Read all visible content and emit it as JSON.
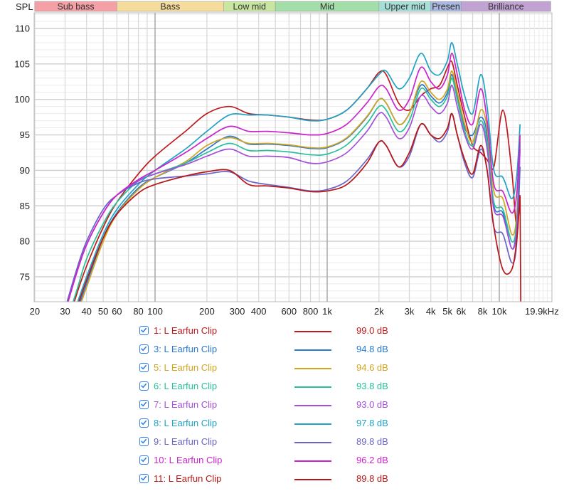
{
  "chart_data": {
    "type": "line",
    "title": "",
    "ylabel": "SPL",
    "xlabel": "",
    "x_scale": "log",
    "xlim": [
      20,
      19900
    ],
    "ylim": [
      71.2,
      112
    ],
    "grid": true,
    "y_ticks": [
      110,
      105,
      100,
      95,
      90,
      85,
      80,
      75
    ],
    "x_ticks": [
      {
        "f": 20,
        "label": "20"
      },
      {
        "f": 30,
        "label": "30"
      },
      {
        "f": 40,
        "label": "40"
      },
      {
        "f": 50,
        "label": "50"
      },
      {
        "f": 60,
        "label": "60"
      },
      {
        "f": 80,
        "label": "80"
      },
      {
        "f": 100,
        "label": "100"
      },
      {
        "f": 200,
        "label": "200"
      },
      {
        "f": 300,
        "label": "300"
      },
      {
        "f": 400,
        "label": "400"
      },
      {
        "f": 600,
        "label": "600"
      },
      {
        "f": 800,
        "label": "800"
      },
      {
        "f": 1000,
        "label": "1k"
      },
      {
        "f": 2000,
        "label": "2k"
      },
      {
        "f": 3000,
        "label": "3k"
      },
      {
        "f": 4000,
        "label": "4k"
      },
      {
        "f": 5000,
        "label": "5k"
      },
      {
        "f": 6000,
        "label": "6k"
      },
      {
        "f": 8000,
        "label": "8k"
      },
      {
        "f": 10000,
        "label": "10k"
      },
      {
        "f": 19900,
        "label": "19.9kHz"
      }
    ],
    "bands": [
      {
        "label": "Sub bass",
        "from": 20,
        "to": 60,
        "color": "#f4a0a6"
      },
      {
        "label": "Bass",
        "from": 60,
        "to": 250,
        "color": "#f6dc9c"
      },
      {
        "label": "Low mid",
        "from": 250,
        "to": 500,
        "color": "#c9e6a1"
      },
      {
        "label": "Mid",
        "from": 500,
        "to": 2000,
        "color": "#a3dea8"
      },
      {
        "label": "Upper mid",
        "from": 2000,
        "to": 4000,
        "color": "#a6dfd8"
      },
      {
        "label": "Presen",
        "from": 4000,
        "to": 6000,
        "color": "#a9b8e0"
      },
      {
        "label": "Brilliance",
        "from": 6000,
        "to": 19900,
        "color": "#c1a3d3"
      }
    ],
    "x": [
      30,
      35,
      40,
      50,
      60,
      80,
      100,
      150,
      200,
      270,
      350,
      450,
      600,
      800,
      1000,
      1300,
      1700,
      2000,
      2200,
      2600,
      3000,
      3500,
      4000,
      4500,
      5000,
      5300,
      5700,
      6300,
      7000,
      7800,
      8500,
      9300,
      10500,
      11800,
      12600,
      13200
    ],
    "series": [
      {
        "name": "1: L Earfun Clip",
        "color": "#c0191c",
        "level": "99.0 dB",
        "values": [
          67,
          72.5,
          76.5,
          82,
          85.5,
          89.5,
          92,
          95.5,
          98,
          99,
          98,
          97.8,
          97.5,
          97.1,
          97.2,
          98.5,
          101.5,
          103.8,
          103.5,
          99.5,
          98.5,
          100.5,
          101.5,
          102,
          104.5,
          105.3,
          102,
          97.5,
          93.5,
          92.5,
          91.5,
          90.5,
          98.5,
          90,
          82,
          86.5
        ]
      },
      {
        "name": "3: L Earfun Clip",
        "color": "#2878d0",
        "level": "94.8 dB",
        "values": [
          65,
          70,
          74,
          80.5,
          84,
          87.5,
          89,
          91,
          93,
          94.8,
          93.7,
          93.7,
          93.5,
          93.1,
          93.2,
          94.5,
          97.5,
          100,
          99.5,
          96.5,
          98,
          102,
          100.5,
          99.5,
          101,
          103.5,
          100.5,
          96,
          95,
          97.5,
          95,
          85,
          84,
          79,
          82,
          93.5
        ]
      },
      {
        "name": "5: L Earfun Clip",
        "color": "#d0a51e",
        "level": "94.6 dB",
        "values": [
          64.5,
          69.5,
          73.5,
          80,
          83.8,
          87.3,
          89,
          91.2,
          93.5,
          94.6,
          93.8,
          93.8,
          93.6,
          93.2,
          93.3,
          94.6,
          97.6,
          100,
          99.5,
          96.5,
          98,
          102.5,
          101,
          100,
          101.5,
          104,
          101,
          96.5,
          94,
          98.5,
          96,
          87,
          86,
          81,
          83.5,
          94.5
        ]
      },
      {
        "name": "6: L Earfun Clip",
        "color": "#26c19a",
        "level": "93.8 dB",
        "values": [
          68,
          73,
          77.5,
          82.5,
          85.5,
          88.5,
          89.5,
          91,
          92.5,
          93.8,
          92.8,
          92.8,
          92.6,
          92.2,
          92.3,
          93.6,
          96.6,
          99,
          98.5,
          95.5,
          97,
          101.5,
          100,
          99,
          100.5,
          103,
          100,
          95.5,
          93.5,
          97,
          94,
          85.5,
          84.5,
          80,
          82.5,
          94
        ]
      },
      {
        "name": "7: L Earfun Clip",
        "color": "#a44fd8",
        "level": "93.0 dB",
        "values": [
          70,
          75.5,
          79.5,
          84,
          86.5,
          88.5,
          89.5,
          90.8,
          92,
          93,
          92,
          92,
          91.8,
          91,
          91.2,
          92.5,
          95.5,
          98,
          97.5,
          94.5,
          96,
          100.5,
          99,
          98,
          99.5,
          102,
          99,
          95,
          93,
          96.5,
          93,
          84.5,
          83.5,
          79,
          81.5,
          93
        ]
      },
      {
        "name": "8: L Earfun Clip",
        "color": "#1fa3c4",
        "level": "97.8 dB",
        "values": [
          66,
          71,
          75,
          81,
          84.5,
          88,
          90,
          93,
          95.5,
          97.8,
          97.8,
          97.8,
          97.5,
          97,
          97.2,
          98.5,
          101.5,
          103.5,
          104,
          101.5,
          103,
          106.5,
          104,
          103.5,
          105.5,
          108,
          105,
          100.5,
          98,
          103.5,
          99,
          90,
          89,
          86,
          89,
          96.5
        ]
      },
      {
        "name": "9: L Earfun Clip",
        "color": "#6b64c8",
        "level": "89.8 dB",
        "values": [
          70.5,
          76,
          80,
          84.5,
          86.5,
          88.2,
          88.8,
          89.2,
          89.5,
          89.8,
          88.5,
          88,
          87.6,
          87.1,
          87.3,
          88.5,
          91.5,
          94,
          93.5,
          90.5,
          92,
          96.5,
          95,
          94,
          95.5,
          98,
          95,
          91,
          89,
          93,
          90,
          82,
          81,
          77,
          79.5,
          90.5
        ]
      },
      {
        "name": "10: L Earfun Clip",
        "color": "#cc22cc",
        "level": "96.2 dB",
        "values": [
          70,
          75.5,
          79.5,
          84,
          86.5,
          88.7,
          90,
          92.5,
          94.5,
          96.2,
          95.5,
          95.5,
          95.3,
          95,
          95.2,
          96.5,
          99.5,
          101.8,
          101.5,
          98.5,
          100,
          104.5,
          102.5,
          101.5,
          103.5,
          106.5,
          103.5,
          98.5,
          96.5,
          101.5,
          97,
          88,
          87,
          84,
          86.5,
          95
        ]
      },
      {
        "name": "11: L Earfun Clip",
        "color": "#b81516",
        "level": "89.8 dB",
        "values": [
          65.5,
          70.5,
          74.5,
          80.5,
          83.8,
          86.8,
          88,
          89.2,
          89.8,
          90,
          88,
          87.8,
          87.5,
          87,
          87.1,
          88,
          91,
          94,
          93.5,
          90.5,
          92.5,
          96.5,
          95,
          94.5,
          96,
          98,
          95,
          91.5,
          89.5,
          93.5,
          90,
          82,
          76,
          76,
          80,
          86.5
        ]
      }
    ]
  },
  "legend": {
    "items": [
      {
        "label": "1: L Earfun Clip",
        "value": "99.0 dB",
        "color": "#c0191c",
        "checked": true
      },
      {
        "label": "3: L Earfun Clip",
        "value": "94.8 dB",
        "color": "#2878d0",
        "checked": true
      },
      {
        "label": "5: L Earfun Clip",
        "value": "94.6 dB",
        "color": "#d0a51e",
        "checked": true
      },
      {
        "label": "6: L Earfun Clip",
        "value": "93.8 dB",
        "color": "#26c19a",
        "checked": true
      },
      {
        "label": "7: L Earfun Clip",
        "value": "93.0 dB",
        "color": "#a44fd8",
        "checked": true
      },
      {
        "label": "8: L Earfun Clip",
        "value": "97.8 dB",
        "color": "#1fa3c4",
        "checked": true
      },
      {
        "label": "9: L Earfun Clip",
        "value": "89.8 dB",
        "color": "#6b64c8",
        "checked": true
      },
      {
        "label": "10: L Earfun Clip",
        "value": "96.2 dB",
        "color": "#cc22cc",
        "checked": true
      },
      {
        "label": "11: L Earfun Clip",
        "value": "89.8 dB",
        "color": "#b81516",
        "checked": true
      }
    ]
  }
}
